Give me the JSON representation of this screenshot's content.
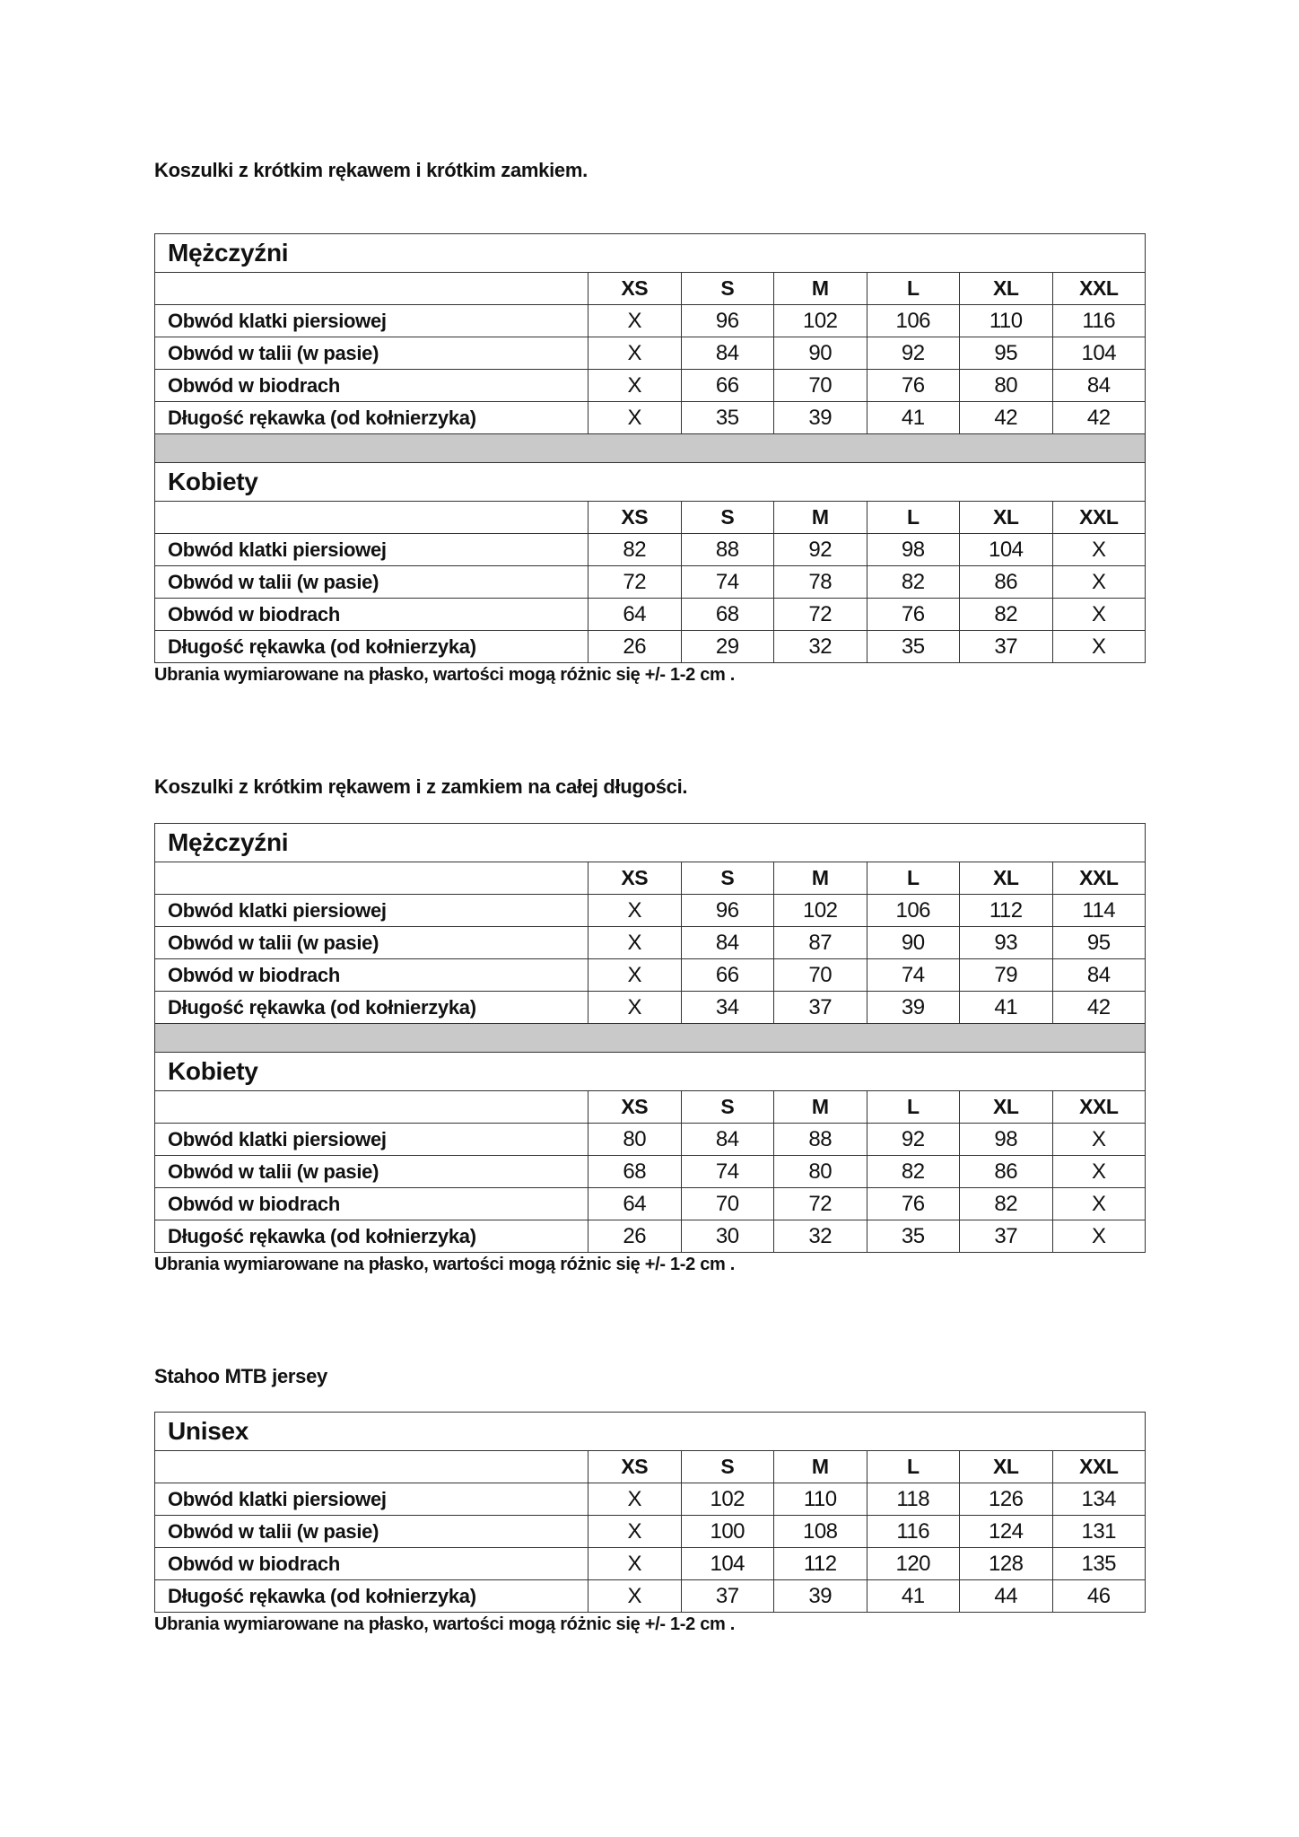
{
  "sizes": [
    "XS",
    "S",
    "M",
    "L",
    "XL",
    "XXL"
  ],
  "measure_labels": [
    "Obwód klatki piersiowej",
    "Obwód w talii (w pasie)",
    "Obwód w biodrach",
    "Długość rękawka (od kołnierzyka)"
  ],
  "sections": [
    {
      "title": "Koszulki z krótkim rękawem i krótkim zamkiem.",
      "groups": [
        {
          "name": "Mężczyźni",
          "rows": [
            [
              "X",
              "96",
              "102",
              "106",
              "110",
              "116"
            ],
            [
              "X",
              "84",
              "90",
              "92",
              "95",
              "104"
            ],
            [
              "X",
              "66",
              "70",
              "76",
              "80",
              "84"
            ],
            [
              "X",
              "35",
              "39",
              "41",
              "42",
              "42"
            ]
          ]
        },
        {
          "name": "Kobiety",
          "rows": [
            [
              "82",
              "88",
              "92",
              "98",
              "104",
              "X"
            ],
            [
              "72",
              "74",
              "78",
              "82",
              "86",
              "X"
            ],
            [
              "64",
              "68",
              "72",
              "76",
              "82",
              "X"
            ],
            [
              "26",
              "29",
              "32",
              "35",
              "37",
              "X"
            ]
          ]
        }
      ],
      "note": "Ubrania wymiarowane na płasko, wartości mogą różnic się +/- 1-2 cm ."
    },
    {
      "title": "Koszulki z krótkim rękawem i z zamkiem na całej długości.",
      "groups": [
        {
          "name": "Mężczyźni",
          "rows": [
            [
              "X",
              "96",
              "102",
              "106",
              "112",
              "114"
            ],
            [
              "X",
              "84",
              "87",
              "90",
              "93",
              "95"
            ],
            [
              "X",
              "66",
              "70",
              "74",
              "79",
              "84"
            ],
            [
              "X",
              "34",
              "37",
              "39",
              "41",
              "42"
            ]
          ]
        },
        {
          "name": "Kobiety",
          "rows": [
            [
              "80",
              "84",
              "88",
              "92",
              "98",
              "X"
            ],
            [
              "68",
              "74",
              "80",
              "82",
              "86",
              "X"
            ],
            [
              "64",
              "70",
              "72",
              "76",
              "82",
              "X"
            ],
            [
              "26",
              "30",
              "32",
              "35",
              "37",
              "X"
            ]
          ]
        }
      ],
      "note": "Ubrania wymiarowane na płasko, wartości mogą różnic się +/- 1-2 cm ."
    },
    {
      "title": "Stahoo MTB jersey",
      "groups": [
        {
          "name": "Unisex",
          "rows": [
            [
              "X",
              "102",
              "110",
              "118",
              "126",
              "134"
            ],
            [
              "X",
              "100",
              "108",
              "116",
              "124",
              "131"
            ],
            [
              "X",
              "104",
              "112",
              "120",
              "128",
              "135"
            ],
            [
              "X",
              "37",
              "39",
              "41",
              "44",
              "46"
            ]
          ]
        }
      ],
      "note": "Ubrania wymiarowane na płasko, wartości mogą różnic się +/- 1-2 cm ."
    }
  ]
}
